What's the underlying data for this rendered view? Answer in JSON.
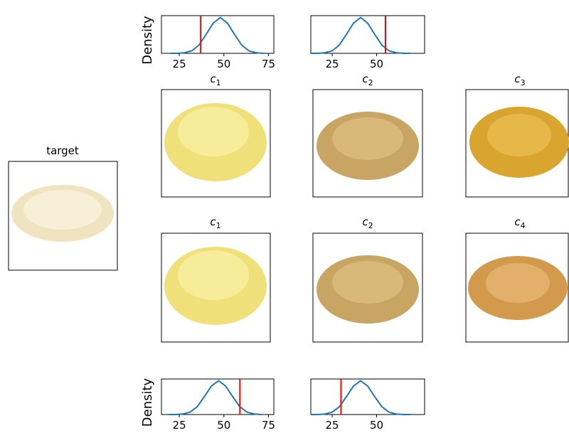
{
  "chart_data": [
    {
      "type": "line",
      "ylabel": "Density",
      "x": [
        20,
        24,
        28,
        32,
        36,
        40,
        44,
        48,
        52,
        56,
        60,
        64,
        68,
        72
      ],
      "values": [
        0.0,
        0.0,
        0.001,
        0.004,
        0.013,
        0.03,
        0.048,
        0.057,
        0.048,
        0.03,
        0.013,
        0.004,
        0.001,
        0.0
      ],
      "color": "#1f77b4",
      "xlim": [
        15,
        78
      ],
      "xticks": [
        25,
        50,
        75
      ],
      "ylim": [
        0,
        0.06
      ],
      "vline": 37,
      "vline_color": "#ff0000"
    },
    {
      "type": "line",
      "x": [
        13,
        17,
        21,
        25,
        29,
        33,
        37,
        41,
        45,
        49,
        53,
        57,
        61,
        65,
        69
      ],
      "values": [
        0.0,
        0.0,
        0.001,
        0.004,
        0.013,
        0.03,
        0.048,
        0.057,
        0.048,
        0.03,
        0.013,
        0.004,
        0.001,
        0.0,
        0.0
      ],
      "color": "#1f77b4",
      "xlim": [
        13,
        77
      ],
      "xticks": [
        25,
        50
      ],
      "ylim": [
        0,
        0.06
      ],
      "vline": 55,
      "vline_color": "#ff0000"
    },
    {
      "type": "line",
      "ylabel": "Density",
      "x": [
        19,
        23,
        27,
        31,
        35,
        39,
        43,
        47,
        51,
        55,
        59,
        63,
        67,
        71
      ],
      "values": [
        0.0,
        0.0,
        0.001,
        0.004,
        0.013,
        0.03,
        0.048,
        0.057,
        0.048,
        0.03,
        0.013,
        0.004,
        0.001,
        0.0
      ],
      "color": "#1f77b4",
      "xlim": [
        15,
        78
      ],
      "xticks": [
        25,
        50,
        75
      ],
      "ylim": [
        0,
        0.06
      ],
      "vline": 59,
      "vline_color": "#ff0000"
    },
    {
      "type": "line",
      "x": [
        13,
        17,
        21,
        25,
        29,
        33,
        37,
        41,
        45,
        49,
        53,
        57,
        61,
        65,
        69
      ],
      "values": [
        0.0,
        0.0,
        0.001,
        0.004,
        0.013,
        0.03,
        0.048,
        0.057,
        0.048,
        0.03,
        0.013,
        0.004,
        0.001,
        0.0,
        0.0
      ],
      "color": "#1f77b4",
      "xlim": [
        13,
        77
      ],
      "xticks": [
        25,
        50
      ],
      "ylim": [
        0,
        0.06
      ],
      "vline": 30,
      "vline_color": "#ff0000"
    }
  ],
  "panels": {
    "target": "target",
    "rows": [
      [
        {
          "symbol": "c",
          "index": "1"
        },
        {
          "symbol": "c",
          "index": "2"
        },
        {
          "symbol": "c",
          "index": "3"
        }
      ],
      [
        {
          "symbol": "c",
          "index": "1"
        },
        {
          "symbol": "c",
          "index": "2"
        },
        {
          "symbol": "c",
          "index": "4"
        }
      ]
    ]
  }
}
